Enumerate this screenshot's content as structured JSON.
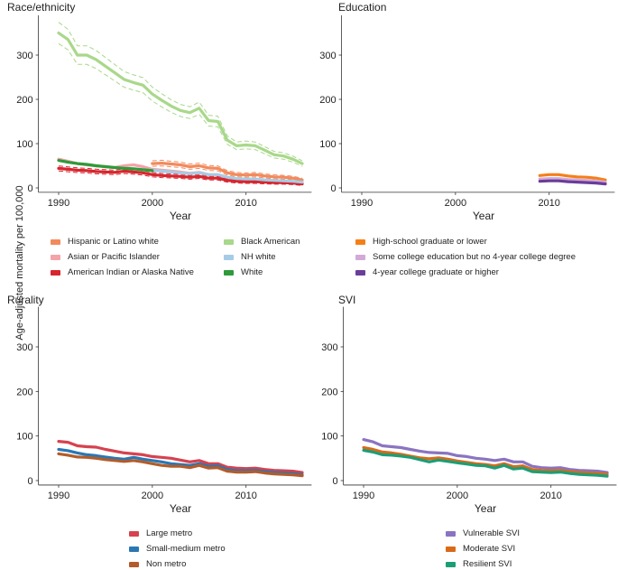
{
  "figure": {
    "ylabel": "Age-adjusted mortality per 100,000",
    "xlabel": "Year",
    "xticks": [
      1990,
      2000,
      2010
    ],
    "yticks": [
      0,
      100,
      200,
      300
    ],
    "xlim": [
      1989,
      2017
    ],
    "ylim": [
      -10,
      390
    ]
  },
  "colors": {
    "hispanic": "#f28a5c",
    "asian": "#f4a3a8",
    "aian": "#d7262e",
    "black": "#a8d88a",
    "nhwhite": "#a6cbe6",
    "white": "#2e9a3a",
    "hs": "#f57f17",
    "somecollege": "#d3a9d6",
    "fouryear": "#6a3d9a",
    "large": "#d6424f",
    "smallmed": "#2a77b4",
    "nonmetro": "#b35c2a",
    "vuln": "#8a74c0",
    "moderate": "#d96a18",
    "resilient": "#1b9e77"
  },
  "chart_data": [
    {
      "panel": "race",
      "type": "line",
      "title": "Race/ethnicity",
      "xlabel": "Year",
      "series": [
        {
          "name": "Black American",
          "color_key": "black",
          "ci": true,
          "x": [
            1990,
            1991,
            1992,
            1993,
            1994,
            1995,
            1996,
            1997,
            1998,
            1999,
            2000,
            2001,
            2002,
            2003,
            2004,
            2005,
            2006,
            2007,
            2008,
            2009,
            2010,
            2011,
            2012,
            2013,
            2014,
            2015,
            2016
          ],
          "values": [
            350,
            335,
            300,
            300,
            290,
            275,
            260,
            245,
            238,
            232,
            212,
            198,
            185,
            175,
            170,
            180,
            152,
            150,
            108,
            95,
            97,
            95,
            85,
            75,
            72,
            65,
            55
          ]
        },
        {
          "name": "Hispanic or Latino white",
          "color_key": "hispanic",
          "ci": true,
          "x": [
            2000,
            2001,
            2002,
            2003,
            2004,
            2005,
            2006,
            2007,
            2008,
            2009,
            2010,
            2011,
            2012,
            2013,
            2014,
            2015,
            2016
          ],
          "values": [
            55,
            56,
            54,
            52,
            48,
            50,
            45,
            44,
            34,
            30,
            29,
            30,
            27,
            25,
            24,
            22,
            18
          ]
        },
        {
          "name": "Asian or Pacific Islander",
          "color_key": "asian",
          "ci": false,
          "x": [
            1990,
            1991,
            1992,
            1993,
            1994,
            1995,
            1996,
            1997,
            1998,
            1999,
            2000,
            2001,
            2002,
            2003,
            2004,
            2005,
            2006,
            2007,
            2008,
            2009,
            2010,
            2011,
            2012,
            2013,
            2014,
            2015,
            2016
          ],
          "values": [
            65,
            60,
            55,
            52,
            50,
            48,
            46,
            50,
            52,
            48,
            42,
            40,
            38,
            36,
            33,
            35,
            30,
            30,
            22,
            20,
            19,
            19,
            17,
            16,
            15,
            14,
            12
          ]
        },
        {
          "name": "American Indian or Alaska Native",
          "color_key": "aian",
          "ci": true,
          "x": [
            1990,
            1991,
            1992,
            1993,
            1994,
            1995,
            1996,
            1997,
            1998,
            1999,
            2000,
            2001,
            2002,
            2003,
            2004,
            2005,
            2006,
            2007,
            2008,
            2009,
            2010,
            2011,
            2012,
            2013,
            2014,
            2015,
            2016
          ],
          "values": [
            44,
            42,
            40,
            39,
            37,
            36,
            35,
            38,
            36,
            34,
            30,
            28,
            27,
            26,
            24,
            26,
            22,
            22,
            17,
            15,
            14,
            14,
            13,
            12,
            12,
            11,
            9
          ]
        },
        {
          "name": "NH white",
          "color_key": "nhwhite",
          "ci": false,
          "x": [
            2000,
            2001,
            2002,
            2003,
            2004,
            2005,
            2006,
            2007,
            2008,
            2009,
            2010,
            2011,
            2012,
            2013,
            2014,
            2015,
            2016
          ],
          "values": [
            40,
            38,
            36,
            34,
            32,
            34,
            30,
            30,
            24,
            21,
            20,
            20,
            18,
            17,
            16,
            15,
            13
          ]
        },
        {
          "name": "White",
          "color_key": "white",
          "ci": false,
          "x": [
            1990,
            1991,
            1992,
            1993,
            1994,
            1995,
            1996,
            1997,
            1998,
            1999,
            2000
          ],
          "values": [
            62,
            58,
            55,
            53,
            50,
            48,
            46,
            44,
            43,
            41,
            39
          ]
        }
      ]
    },
    {
      "panel": "education",
      "type": "line",
      "title": "Education",
      "xlabel": "Year",
      "series": [
        {
          "name": "High-school graduate or lower",
          "color_key": "hs",
          "ci": false,
          "x": [
            2009,
            2010,
            2011,
            2012,
            2013,
            2014,
            2015,
            2016
          ],
          "values": [
            28,
            30,
            30,
            27,
            25,
            24,
            22,
            18
          ]
        },
        {
          "name": "Some college education but no 4-year college degree",
          "color_key": "somecollege",
          "ci": false,
          "x": [
            2009,
            2010,
            2011,
            2012,
            2013,
            2014,
            2015,
            2016
          ],
          "values": [
            20,
            21,
            21,
            19,
            18,
            17,
            16,
            13
          ]
        },
        {
          "name": "4-year college graduate or higher",
          "color_key": "fouryear",
          "ci": false,
          "x": [
            2009,
            2010,
            2011,
            2012,
            2013,
            2014,
            2015,
            2016
          ],
          "values": [
            15,
            16,
            16,
            14,
            13,
            12,
            11,
            9
          ]
        }
      ]
    },
    {
      "panel": "rurality",
      "type": "line",
      "title": "Rurality",
      "xlabel": "Year",
      "series": [
        {
          "name": "Large metro",
          "color_key": "large",
          "ci": false,
          "x": [
            1990,
            1991,
            1992,
            1993,
            1994,
            1995,
            1996,
            1997,
            1998,
            1999,
            2000,
            2001,
            2002,
            2003,
            2004,
            2005,
            2006,
            2007,
            2008,
            2009,
            2010,
            2011,
            2012,
            2013,
            2014,
            2015,
            2016
          ],
          "values": [
            88,
            86,
            78,
            76,
            75,
            70,
            66,
            62,
            60,
            58,
            54,
            52,
            50,
            46,
            42,
            45,
            38,
            38,
            30,
            28,
            27,
            28,
            25,
            23,
            22,
            21,
            18
          ]
        },
        {
          "name": "Small-medium metro",
          "color_key": "smallmed",
          "ci": false,
          "x": [
            1990,
            1991,
            1992,
            1993,
            1994,
            1995,
            1996,
            1997,
            1998,
            1999,
            2000,
            2001,
            2002,
            2003,
            2004,
            2005,
            2006,
            2007,
            2008,
            2009,
            2010,
            2011,
            2012,
            2013,
            2014,
            2015,
            2016
          ],
          "values": [
            70,
            67,
            62,
            58,
            56,
            53,
            50,
            48,
            52,
            48,
            45,
            42,
            38,
            36,
            34,
            38,
            32,
            33,
            25,
            22,
            22,
            23,
            20,
            18,
            17,
            16,
            13
          ]
        },
        {
          "name": "Non metro",
          "color_key": "nonmetro",
          "ci": false,
          "x": [
            1990,
            1991,
            1992,
            1993,
            1994,
            1995,
            1996,
            1997,
            1998,
            1999,
            2000,
            2001,
            2002,
            2003,
            2004,
            2005,
            2006,
            2007,
            2008,
            2009,
            2010,
            2011,
            2012,
            2013,
            2014,
            2015,
            2016
          ],
          "values": [
            60,
            57,
            53,
            52,
            50,
            47,
            45,
            43,
            45,
            42,
            38,
            34,
            32,
            32,
            29,
            34,
            28,
            29,
            21,
            19,
            19,
            20,
            17,
            15,
            14,
            13,
            11
          ]
        }
      ]
    },
    {
      "panel": "svi",
      "type": "line",
      "title": "SVI",
      "xlabel": "Year",
      "series": [
        {
          "name": "Vulnerable SVI",
          "color_key": "vuln",
          "ci": false,
          "x": [
            1990,
            1991,
            1992,
            1993,
            1994,
            1995,
            1996,
            1997,
            1998,
            1999,
            2000,
            2001,
            2002,
            2003,
            2004,
            2005,
            2006,
            2007,
            2008,
            2009,
            2010,
            2011,
            2012,
            2013,
            2014,
            2015,
            2016
          ],
          "values": [
            92,
            87,
            78,
            76,
            74,
            70,
            66,
            63,
            62,
            61,
            56,
            54,
            50,
            48,
            45,
            48,
            42,
            42,
            32,
            29,
            28,
            29,
            25,
            23,
            22,
            21,
            18
          ]
        },
        {
          "name": "Moderate SVI",
          "color_key": "moderate",
          "ci": false,
          "x": [
            1990,
            1991,
            1992,
            1993,
            1994,
            1995,
            1996,
            1997,
            1998,
            1999,
            2000,
            2001,
            2002,
            2003,
            2004,
            2005,
            2006,
            2007,
            2008,
            2009,
            2010,
            2011,
            2012,
            2013,
            2014,
            2015,
            2016
          ],
          "values": [
            74,
            70,
            64,
            62,
            59,
            55,
            51,
            49,
            51,
            48,
            44,
            41,
            38,
            36,
            33,
            38,
            31,
            33,
            25,
            23,
            22,
            23,
            20,
            18,
            17,
            16,
            14
          ]
        },
        {
          "name": "Resilient SVI",
          "color_key": "resilient",
          "ci": false,
          "x": [
            1990,
            1991,
            1992,
            1993,
            1994,
            1995,
            1996,
            1997,
            1998,
            1999,
            2000,
            2001,
            2002,
            2003,
            2004,
            2005,
            2006,
            2007,
            2008,
            2009,
            2010,
            2011,
            2012,
            2013,
            2014,
            2015,
            2016
          ],
          "values": [
            68,
            64,
            58,
            57,
            55,
            52,
            47,
            42,
            46,
            43,
            40,
            37,
            34,
            33,
            28,
            34,
            26,
            28,
            20,
            19,
            18,
            19,
            16,
            14,
            13,
            12,
            10
          ]
        }
      ]
    }
  ]
}
